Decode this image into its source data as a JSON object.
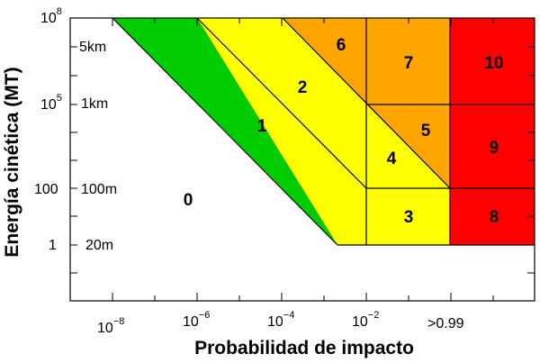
{
  "chart_data": {
    "type": "area",
    "xlabel": "Probabilidad de impacto",
    "ylabel": "Energía cinética (MT)",
    "x_tick_labels": [
      {
        "base": "10",
        "exp": "−8"
      },
      {
        "base": "10",
        "exp": "−6"
      },
      {
        "base": "10",
        "exp": "−4"
      },
      {
        "base": "10",
        "exp": "−2"
      },
      {
        "base": ">0.99",
        "exp": ""
      }
    ],
    "y_tick_labels": [
      {
        "base": "10",
        "exp": "8"
      },
      {
        "base": "10",
        "exp": "5"
      },
      {
        "base": "100",
        "exp": ""
      },
      {
        "base": "1",
        "exp": ""
      }
    ],
    "size_labels": [
      "5km",
      "1km",
      "100m",
      "20m"
    ],
    "zones": [
      {
        "label": "0",
        "color": "#ffffff"
      },
      {
        "label": "1",
        "color": "#00cc00"
      },
      {
        "label": "2",
        "color": "#ffff00"
      },
      {
        "label": "3",
        "color": "#ffff00"
      },
      {
        "label": "4",
        "color": "#ffff00"
      },
      {
        "label": "5",
        "color": "#ffa500"
      },
      {
        "label": "6",
        "color": "#ffa500"
      },
      {
        "label": "7",
        "color": "#ffa500"
      },
      {
        "label": "8",
        "color": "#ff0000"
      },
      {
        "label": "9",
        "color": "#ff0000"
      },
      {
        "label": "10",
        "color": "#ff0000"
      }
    ]
  }
}
